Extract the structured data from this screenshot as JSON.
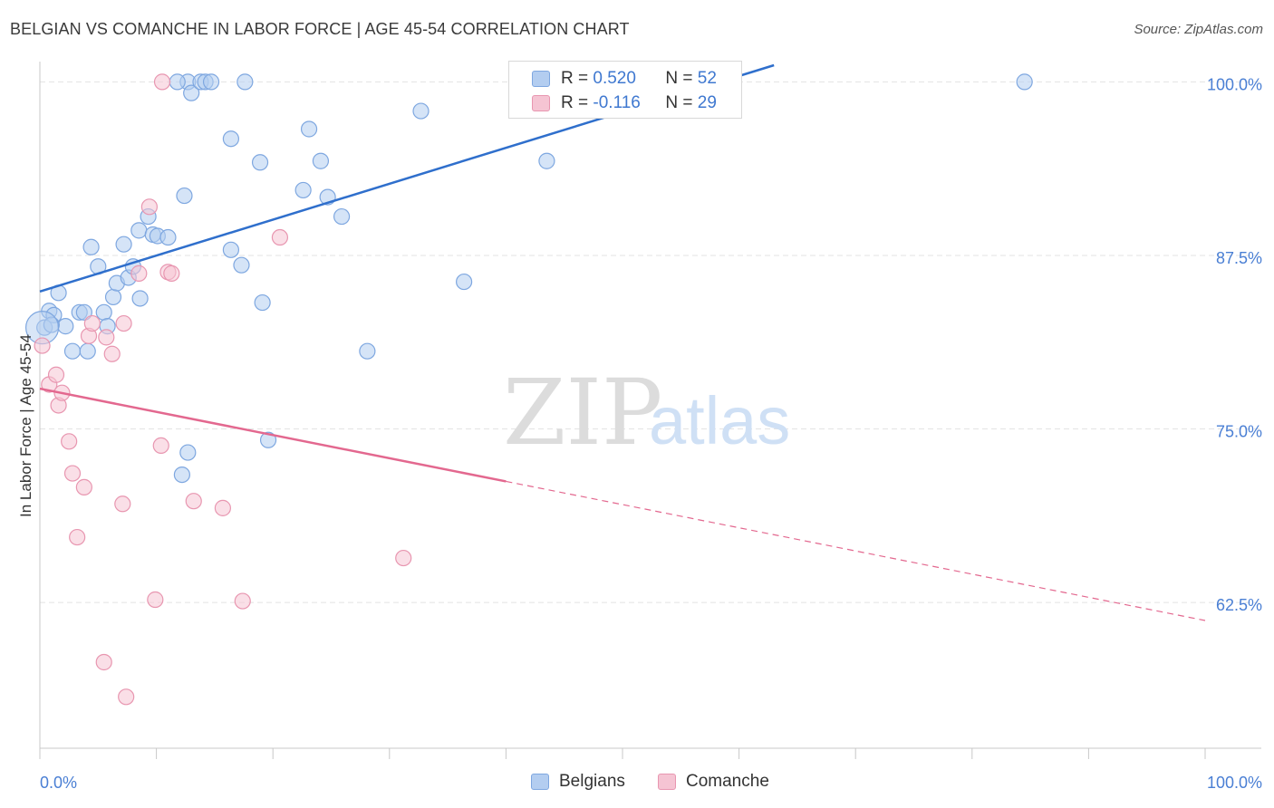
{
  "header": {
    "title": "BELGIAN VS COMANCHE IN LABOR FORCE | AGE 45-54 CORRELATION CHART",
    "source": "Source: ZipAtlas.com"
  },
  "watermark": {
    "zip": "ZIP",
    "atlas": "atlas"
  },
  "legend": {
    "r_label": "R =",
    "n_label": "N =",
    "rows": [
      {
        "r": "0.520",
        "n": "52"
      },
      {
        "r": "-0.116",
        "n": "29"
      }
    ]
  },
  "bottom_legend": {
    "series1": "Belgians",
    "series2": "Comanche"
  },
  "colors": {
    "belgians_fill": "#b3cdf0",
    "belgians_stroke": "#7ea7e0",
    "belgians_line": "#2f6fcc",
    "comanche_fill": "#f5c4d3",
    "comanche_stroke": "#e896b0",
    "comanche_line": "#e3688f",
    "tick_text": "#4a7fd4",
    "grid": "#e3e3e3"
  },
  "chart_data": {
    "type": "scatter",
    "title": "BELGIAN VS COMANCHE IN LABOR FORCE | AGE 45-54 CORRELATION CHART",
    "xlabel": "",
    "ylabel": "In Labor Force | Age 45-54",
    "xlim": [
      0,
      100
    ],
    "ylim": [
      52.0,
      101.2
    ],
    "x_tick_labels": [
      "0.0%",
      "100.0%"
    ],
    "y_ticks": [
      100.0,
      87.5,
      75.0,
      62.5
    ],
    "y_tick_labels": [
      "100.0%",
      "87.5%",
      "75.0%",
      "62.5%"
    ],
    "grid": true,
    "legend_placement": "top-center",
    "series": [
      {
        "name": "Belgians",
        "points": [
          [
            0.4,
            82.3
          ],
          [
            0.8,
            83.5
          ],
          [
            1.2,
            83.2
          ],
          [
            1.6,
            84.8
          ],
          [
            2.2,
            82.4
          ],
          [
            2.8,
            80.6
          ],
          [
            3.4,
            83.4
          ],
          [
            3.8,
            83.4
          ],
          [
            4.1,
            80.6
          ],
          [
            4.4,
            88.1
          ],
          [
            5.0,
            86.7
          ],
          [
            5.5,
            83.4
          ],
          [
            5.8,
            82.4
          ],
          [
            6.3,
            84.5
          ],
          [
            6.6,
            85.5
          ],
          [
            7.2,
            88.3
          ],
          [
            7.6,
            85.9
          ],
          [
            8.0,
            86.7
          ],
          [
            8.6,
            84.4
          ],
          [
            8.5,
            89.3
          ],
          [
            9.3,
            90.3
          ],
          [
            9.7,
            89.0
          ],
          [
            10.1,
            88.9
          ],
          [
            11.0,
            88.8
          ],
          [
            12.2,
            71.7
          ],
          [
            12.7,
            73.3
          ],
          [
            12.4,
            91.8
          ],
          [
            12.7,
            100.0
          ],
          [
            13.0,
            99.2
          ],
          [
            13.8,
            100.0
          ],
          [
            14.2,
            100.0
          ],
          [
            14.7,
            100.0
          ],
          [
            17.3,
            86.8
          ],
          [
            16.4,
            95.9
          ],
          [
            16.4,
            87.9
          ],
          [
            17.6,
            100.0
          ],
          [
            18.9,
            94.2
          ],
          [
            19.1,
            84.1
          ],
          [
            19.6,
            74.2
          ],
          [
            22.6,
            92.2
          ],
          [
            23.1,
            96.6
          ],
          [
            24.1,
            94.3
          ],
          [
            24.7,
            91.7
          ],
          [
            25.9,
            90.3
          ],
          [
            28.1,
            80.6
          ],
          [
            32.7,
            97.9
          ],
          [
            36.4,
            85.6
          ],
          [
            43.5,
            94.3
          ],
          [
            52.1,
            100.0
          ],
          [
            84.5,
            100.0
          ],
          [
            1.0,
            82.5
          ],
          [
            11.8,
            100.0
          ]
        ]
      },
      {
        "name": "Comanche",
        "points": [
          [
            0.2,
            81.0
          ],
          [
            0.8,
            78.2
          ],
          [
            1.4,
            78.9
          ],
          [
            1.6,
            76.7
          ],
          [
            1.9,
            77.6
          ],
          [
            2.5,
            74.1
          ],
          [
            2.8,
            71.8
          ],
          [
            3.2,
            67.2
          ],
          [
            3.8,
            70.8
          ],
          [
            4.2,
            81.7
          ],
          [
            4.5,
            82.6
          ],
          [
            5.5,
            58.2
          ],
          [
            5.7,
            81.6
          ],
          [
            6.2,
            80.4
          ],
          [
            7.1,
            69.6
          ],
          [
            7.4,
            55.7
          ],
          [
            9.4,
            91.0
          ],
          [
            9.9,
            62.7
          ],
          [
            10.4,
            73.8
          ],
          [
            11.0,
            86.3
          ],
          [
            11.3,
            86.2
          ],
          [
            13.2,
            69.8
          ],
          [
            15.7,
            69.3
          ],
          [
            17.4,
            62.6
          ],
          [
            20.6,
            88.8
          ],
          [
            31.2,
            65.7
          ],
          [
            8.5,
            86.2
          ],
          [
            7.2,
            82.6
          ],
          [
            10.5,
            100.0
          ]
        ]
      }
    ],
    "trend_lines": [
      {
        "name": "Belgians",
        "from": [
          0,
          84.9
        ],
        "to": [
          63.0,
          101.2
        ]
      },
      {
        "name": "Comanche",
        "from": [
          0,
          77.9
        ],
        "to": [
          100,
          61.2
        ],
        "solid_until_x": 40.0
      }
    ]
  }
}
